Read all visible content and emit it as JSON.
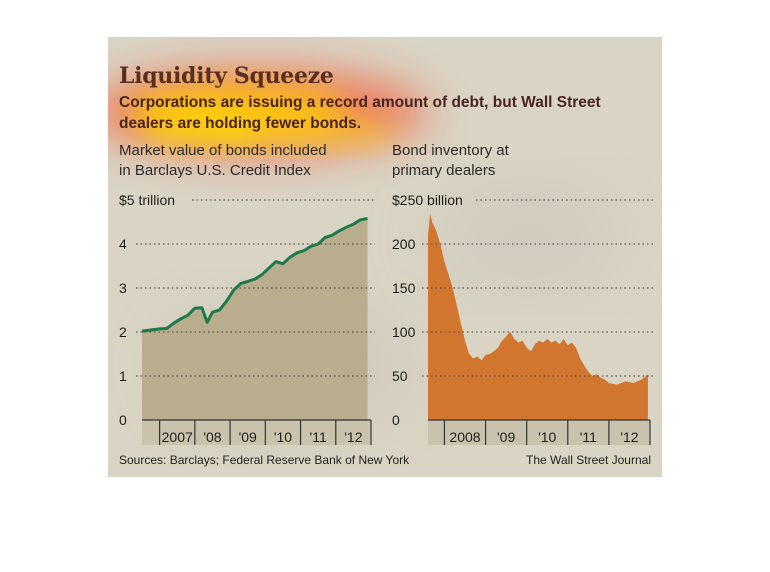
{
  "graphic": {
    "title": "Liquidity Squeeze",
    "subtitle_line1": "Corporations are issuing a record amount of debt, but Wall Street",
    "subtitle_line2": "dealers are holding fewer bonds.",
    "source": "Sources: Barclays; Federal Reserve Bank of New York",
    "credit": "The Wall Street Journal",
    "colors": {
      "background": "#d9d4c4",
      "left_fill": "#b9ad8d",
      "left_line": "#1e7a4a",
      "right_fill": "#d2752e",
      "heatmap_overlay": "#ff2a00"
    }
  },
  "chart_data": [
    {
      "type": "area",
      "title": "Market value of bonds included in Barclays U.S. Credit Index",
      "title_line1": "Market value of bonds included",
      "title_line2": "in Barclays U.S. Credit Index",
      "ymax_label": "$5 trillion",
      "y_ticks": [
        "4",
        "3",
        "2",
        "1",
        "0"
      ],
      "y_tick_values": [
        4,
        3,
        2,
        1,
        0
      ],
      "ylim": [
        0,
        5
      ],
      "x_range": [
        2006.5,
        2013.0
      ],
      "x_labels": [
        "2007",
        "'08",
        "'09",
        "'10",
        "'11",
        "'12"
      ],
      "x_label_values": [
        2007,
        2008,
        2009,
        2010,
        2011,
        2012
      ],
      "grid": true,
      "series": [
        {
          "x": [
            2006.5,
            2006.8,
            2007.0,
            2007.2,
            2007.4,
            2007.6,
            2007.8,
            2008.0,
            2008.2,
            2008.35,
            2008.5,
            2008.7,
            2008.9,
            2009.1,
            2009.3,
            2009.5,
            2009.7,
            2009.9,
            2010.1,
            2010.3,
            2010.5,
            2010.7,
            2010.9,
            2011.1,
            2011.3,
            2011.5,
            2011.7,
            2011.9,
            2012.1,
            2012.3,
            2012.5,
            2012.7,
            2012.9
          ],
          "values": [
            2.02,
            2.05,
            2.07,
            2.08,
            2.2,
            2.3,
            2.38,
            2.54,
            2.55,
            2.22,
            2.45,
            2.5,
            2.7,
            2.95,
            3.1,
            3.15,
            3.2,
            3.3,
            3.45,
            3.6,
            3.55,
            3.7,
            3.8,
            3.85,
            3.95,
            4.0,
            4.15,
            4.2,
            4.3,
            4.38,
            4.45,
            4.55,
            4.58
          ]
        }
      ]
    },
    {
      "type": "area",
      "title": "Bond inventory at primary dealers",
      "title_line1": "Bond inventory at",
      "title_line2": "primary dealers",
      "ymax_label": "$250 billion",
      "y_ticks": [
        "200",
        "150",
        "100",
        "50",
        "0"
      ],
      "y_tick_values": [
        200,
        150,
        100,
        50,
        0
      ],
      "ylim": [
        0,
        250
      ],
      "x_range": [
        2007.6,
        2013.0
      ],
      "x_labels": [
        "2008",
        "'09",
        "'10",
        "'11",
        "'12"
      ],
      "x_label_values": [
        2008,
        2009,
        2010,
        2011,
        2012
      ],
      "grid": true,
      "series": [
        {
          "x": [
            2007.6,
            2007.65,
            2007.7,
            2007.8,
            2007.9,
            2008.0,
            2008.1,
            2008.2,
            2008.3,
            2008.4,
            2008.5,
            2008.6,
            2008.7,
            2008.8,
            2008.9,
            2009.0,
            2009.1,
            2009.2,
            2009.3,
            2009.4,
            2009.5,
            2009.6,
            2009.7,
            2009.8,
            2009.9,
            2010.0,
            2010.1,
            2010.2,
            2010.3,
            2010.4,
            2010.5,
            2010.6,
            2010.7,
            2010.8,
            2010.9,
            2011.0,
            2011.1,
            2011.2,
            2011.3,
            2011.4,
            2011.5,
            2011.6,
            2011.7,
            2011.8,
            2011.9,
            2012.0,
            2012.2,
            2012.4,
            2012.6,
            2012.8,
            2012.95
          ],
          "values": [
            210,
            235,
            225,
            215,
            200,
            180,
            165,
            150,
            130,
            110,
            90,
            75,
            70,
            72,
            68,
            74,
            75,
            78,
            82,
            90,
            95,
            100,
            92,
            88,
            90,
            82,
            78,
            86,
            90,
            88,
            92,
            88,
            90,
            86,
            92,
            85,
            88,
            82,
            70,
            62,
            55,
            50,
            52,
            48,
            46,
            42,
            40,
            44,
            42,
            46,
            52
          ]
        }
      ]
    }
  ]
}
